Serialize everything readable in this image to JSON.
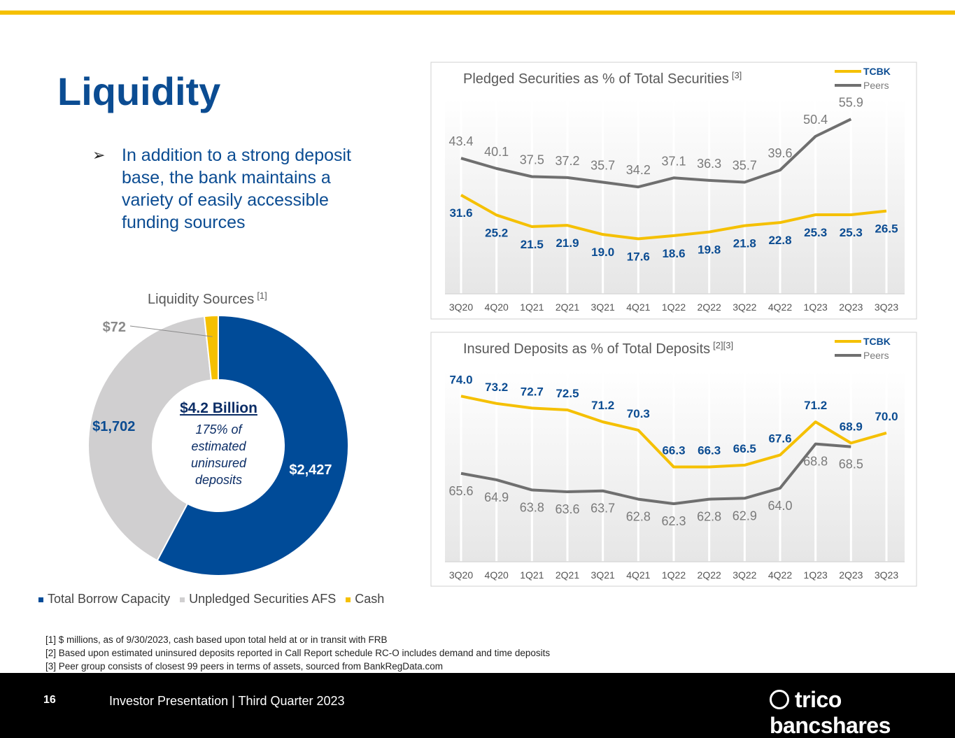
{
  "header": {
    "title": "Liquidity"
  },
  "bullet": "In addition to a strong deposit base, the bank maintains a variety of easily accessible funding sources",
  "chart_data": [
    {
      "type": "pie",
      "title": "Liquidity Sources",
      "title_note": "[1]",
      "categories": [
        "Total Borrow Capacity",
        "Unpledged Securities AFS",
        "Cash"
      ],
      "values": [
        2427,
        1702,
        72
      ],
      "value_labels": [
        "$2,427",
        "$1,702",
        "$72"
      ],
      "colors": [
        "#004b98",
        "#d0cfd0",
        "#f5c000"
      ],
      "center_title": "$4.2 Billion",
      "center_text": "175% of estimated uninsured deposits"
    },
    {
      "type": "line",
      "title": "Pledged Securities as % of Total Securities",
      "title_note": "[3]",
      "categories": [
        "3Q20",
        "4Q20",
        "1Q21",
        "2Q21",
        "3Q21",
        "4Q21",
        "1Q22",
        "2Q22",
        "3Q22",
        "4Q22",
        "1Q23",
        "2Q23",
        "3Q23"
      ],
      "ylim": [
        0,
        60
      ],
      "series": [
        {
          "name": "TCBK",
          "color": "#f5c000",
          "values": [
            31.6,
            25.2,
            21.5,
            21.9,
            19.0,
            17.6,
            18.6,
            19.8,
            21.8,
            22.8,
            25.3,
            25.3,
            26.5
          ],
          "value_labels": [
            "31.6",
            "25.2",
            "21.5",
            "21.9",
            "19.0",
            "17.6",
            "18.6",
            "19.8",
            "21.8",
            "22.8",
            "25.3",
            "25.3",
            "26.5"
          ]
        },
        {
          "name": "Peers",
          "color": "#6f6f6f",
          "values": [
            43.4,
            40.1,
            37.5,
            37.2,
            35.7,
            34.2,
            37.1,
            36.3,
            35.7,
            39.6,
            50.4,
            55.9,
            null
          ],
          "value_labels": [
            "43.4",
            "40.1",
            "37.5",
            "37.2",
            "35.7",
            "34.2",
            "37.1",
            "36.3",
            "35.7",
            "39.6",
            "50.4",
            "55.9",
            null
          ]
        }
      ]
    },
    {
      "type": "line",
      "title": "Insured Deposits as % of Total Deposits",
      "title_note": "[2][3]",
      "categories": [
        "3Q20",
        "4Q20",
        "1Q21",
        "2Q21",
        "3Q21",
        "4Q21",
        "1Q22",
        "2Q22",
        "3Q22",
        "4Q22",
        "1Q23",
        "2Q23",
        "3Q23"
      ],
      "ylim": [
        56,
        76
      ],
      "series": [
        {
          "name": "TCBK",
          "color": "#f5c000",
          "values": [
            74.0,
            73.2,
            72.7,
            72.5,
            71.2,
            70.3,
            66.3,
            66.3,
            66.5,
            67.6,
            71.2,
            68.9,
            70.0
          ],
          "value_labels": [
            "74.0",
            "73.2",
            "72.7",
            "72.5",
            "71.2",
            "70.3",
            "66.3",
            "66.3",
            "66.5",
            "67.6",
            "71.2",
            "68.9",
            "70.0"
          ]
        },
        {
          "name": "Peers",
          "color": "#6f6f6f",
          "values": [
            65.6,
            64.9,
            63.8,
            63.6,
            63.7,
            62.8,
            62.3,
            62.8,
            62.9,
            64.0,
            68.8,
            68.5,
            null
          ],
          "value_labels": [
            "65.6",
            "64.9",
            "63.8",
            "63.6",
            "63.7",
            "62.8",
            "62.3",
            "62.8",
            "62.9",
            "64.0",
            "68.8",
            "68.5",
            null
          ]
        }
      ]
    }
  ],
  "footnotes": [
    "[1] $ millions, as of 9/30/2023, cash based upon total held at or in transit with FRB",
    "[2] Based upon estimated uninsured deposits reported in Call Report schedule RC-O includes demand and time deposits",
    "[3] Peer group consists of closest 99 peers in terms of assets, sourced from BankRegData.com"
  ],
  "footer": {
    "page": "16",
    "text": "Investor Presentation | Third Quarter 2023",
    "logo": "trico bancshares"
  }
}
